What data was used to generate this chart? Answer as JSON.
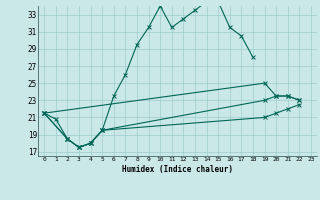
{
  "xlabel": "Humidex (Indice chaleur)",
  "background_color": "#cbe8e8",
  "grid_color": "#a0cccc",
  "line_color": "#006655",
  "xlim": [
    -0.5,
    23.5
  ],
  "ylim": [
    16.5,
    34.0
  ],
  "xticks": [
    0,
    1,
    2,
    3,
    4,
    5,
    6,
    7,
    8,
    9,
    10,
    11,
    12,
    13,
    14,
    15,
    16,
    17,
    18,
    19,
    20,
    21,
    22,
    23
  ],
  "yticks": [
    17,
    19,
    21,
    23,
    25,
    27,
    29,
    31,
    33
  ],
  "line1_x": [
    0,
    1,
    2,
    3,
    4,
    5,
    6,
    7,
    8,
    9,
    10,
    11,
    12,
    13,
    14,
    15,
    16,
    17,
    18
  ],
  "line1_y": [
    21.5,
    20.8,
    18.5,
    17.5,
    18.0,
    19.5,
    23.5,
    26.0,
    29.5,
    31.5,
    34.0,
    31.5,
    32.5,
    33.5,
    34.5,
    34.5,
    31.5,
    30.5,
    28.0
  ],
  "line2_x": [
    0,
    19,
    20,
    21,
    22
  ],
  "line2_y": [
    21.5,
    25.0,
    23.5,
    23.5,
    23.0
  ],
  "line3_x": [
    0,
    2,
    3,
    4,
    5,
    19,
    20,
    21,
    22
  ],
  "line3_y": [
    21.5,
    18.5,
    17.5,
    18.0,
    19.5,
    23.0,
    23.5,
    23.5,
    23.0
  ],
  "line4_x": [
    0,
    2,
    3,
    4,
    5,
    19,
    20,
    21,
    22
  ],
  "line4_y": [
    21.5,
    18.5,
    17.5,
    18.0,
    19.5,
    21.0,
    21.5,
    22.0,
    22.5
  ]
}
